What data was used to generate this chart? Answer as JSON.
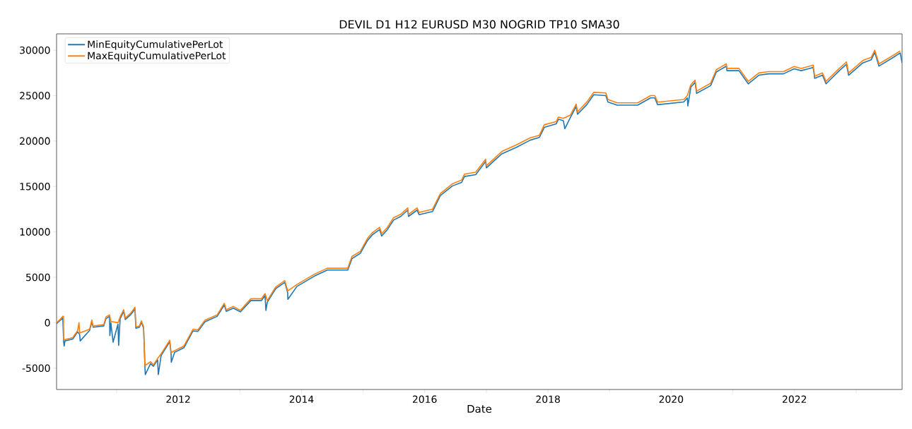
{
  "chart_data": {
    "type": "line",
    "title": "DEVIL D1 H12 EURUSD M30 NOGRID TP10 SMA30",
    "xlabel": "Date",
    "xlim": [
      "2010-01-10",
      "2023-10-01"
    ],
    "xticks": [
      {
        "value": "2011-01-01",
        "label": null
      },
      {
        "value": "2012-01-01",
        "label": "2012"
      },
      {
        "value": "2013-01-01",
        "label": null
      },
      {
        "value": "2014-01-01",
        "label": "2014"
      },
      {
        "value": "2015-01-01",
        "label": null
      },
      {
        "value": "2016-01-01",
        "label": "2016"
      },
      {
        "value": "2017-01-01",
        "label": null
      },
      {
        "value": "2018-01-01",
        "label": "2018"
      },
      {
        "value": "2019-01-01",
        "label": null
      },
      {
        "value": "2020-01-01",
        "label": "2020"
      },
      {
        "value": "2021-01-01",
        "label": null
      },
      {
        "value": "2022-01-01",
        "label": "2022"
      },
      {
        "value": "2023-01-01",
        "label": null
      }
    ],
    "ylim": [
      -7350,
      31800
    ],
    "yticks": [
      -5000,
      0,
      5000,
      10000,
      15000,
      20000,
      25000,
      30000
    ],
    "legend": "top left",
    "grid": false,
    "marker": "none",
    "line_style": "solid",
    "series": [
      {
        "name": "MinEquityCumulativePerLot",
        "color": "#1f77b4",
        "x": [
          "2010-01-10",
          "2010-01-31",
          "2010-02-16",
          "2010-02-21",
          "2010-02-24",
          "2010-03-01",
          "2010-04-16",
          "2010-05-15",
          "2010-05-23",
          "2010-05-27",
          "2010-05-30",
          "2010-07-25",
          "2010-08-07",
          "2010-08-15",
          "2010-10-17",
          "2010-10-30",
          "2010-11-20",
          "2010-11-22",
          "2010-11-28",
          "2010-12-11",
          "2011-01-09",
          "2011-01-13",
          "2011-01-22",
          "2011-02-12",
          "2011-02-21",
          "2011-03-26",
          "2011-04-20",
          "2011-04-25",
          "2011-05-16",
          "2011-05-28",
          "2011-06-10",
          "2011-06-18",
          "2011-06-20",
          "2011-07-21",
          "2011-08-07",
          "2011-09-01",
          "2011-09-05",
          "2011-09-22",
          "2011-11-12",
          "2011-11-20",
          "2011-11-21",
          "2011-12-11",
          "2012-02-04",
          "2012-03-29",
          "2012-04-27",
          "2012-06-08",
          "2012-08-19",
          "2012-09-30",
          "2012-10-12",
          "2012-11-23",
          "2013-01-04",
          "2013-03-07",
          "2013-05-09",
          "2013-05-30",
          "2013-06-04",
          "2013-06-12",
          "2013-08-01",
          "2013-09-24",
          "2013-10-11",
          "2013-10-12",
          "2013-12-05",
          "2014-03-20",
          "2014-06-03",
          "2014-10-02",
          "2014-10-27",
          "2014-12-16",
          "2015-01-27",
          "2015-02-26",
          "2015-04-09",
          "2015-04-21",
          "2015-05-25",
          "2015-07-01",
          "2015-08-12",
          "2015-09-23",
          "2015-09-27",
          "2015-11-17",
          "2015-11-29",
          "2016-02-17",
          "2016-04-03",
          "2016-06-13",
          "2016-08-07",
          "2016-08-24",
          "2016-10-30",
          "2016-12-27",
          "2017-01-01",
          "2017-02-20",
          "2017-04-03",
          "2017-06-26",
          "2017-09-18",
          "2017-11-11",
          "2017-12-10",
          "2018-02-19",
          "2018-03-04",
          "2018-04-02",
          "2018-04-11",
          "2018-05-14",
          "2018-06-17",
          "2018-06-25",
          "2018-08-19",
          "2018-09-29",
          "2018-12-10",
          "2018-12-22",
          "2019-02-15",
          "2019-06-17",
          "2019-09-01",
          "2019-09-26",
          "2019-10-13",
          "2020-03-16",
          "2020-04-06",
          "2020-04-09",
          "2020-04-27",
          "2020-05-22",
          "2020-05-31",
          "2020-08-22",
          "2020-09-25",
          "2020-11-23",
          "2020-11-27",
          "2021-02-06",
          "2021-04-02",
          "2021-06-04",
          "2021-08-01",
          "2021-10-28",
          "2021-12-30",
          "2022-02-10",
          "2022-03-24",
          "2022-04-22",
          "2022-05-01",
          "2022-06-16",
          "2022-07-07",
          "2022-09-24",
          "2022-11-05",
          "2022-11-18",
          "2023-02-10",
          "2023-04-01",
          "2023-04-22",
          "2023-05-17",
          "2023-08-09",
          "2023-09-20",
          "2023-10-01"
        ],
        "values": [
          -100,
          250,
          500,
          -2100,
          -2570,
          -2000,
          -1800,
          -1000,
          null,
          -1300,
          -2000,
          -850,
          100,
          -500,
          -350,
          450,
          700,
          -1430,
          0,
          -2140,
          -150,
          -2500,
          450,
          1250,
          350,
          900,
          1500,
          -600,
          -500,
          50,
          -600,
          -4900,
          -5710,
          -4500,
          -4800,
          -4100,
          -5710,
          -3600,
          -2100,
          -3450,
          -4360,
          -3250,
          -2750,
          -900,
          -950,
          100,
          700,
          1950,
          1250,
          1600,
          1200,
          2450,
          2450,
          3000,
          1360,
          2250,
          3750,
          4450,
          3300,
          2570,
          4000,
          5150,
          5800,
          5800,
          7050,
          7650,
          9050,
          9700,
          10250,
          9550,
          10250,
          11300,
          11700,
          12400,
          11700,
          12400,
          11900,
          12250,
          14000,
          15050,
          15450,
          16100,
          16300,
          17750,
          17050,
          17900,
          18600,
          19300,
          20100,
          20400,
          21500,
          21900,
          22400,
          22250,
          21360,
          22600,
          23800,
          22950,
          24000,
          25100,
          25000,
          24300,
          23950,
          23950,
          24750,
          24750,
          24000,
          24300,
          24750,
          23860,
          25950,
          26450,
          25250,
          26100,
          27600,
          28250,
          27750,
          27750,
          26300,
          27250,
          27400,
          27400,
          27950,
          27750,
          27950,
          28100,
          26900,
          27250,
          26300,
          27750,
          28450,
          27250,
          28600,
          28950,
          29750,
          28250,
          29200,
          29700,
          28600
        ]
      },
      {
        "name": "MaxEquityCumulativePerLot",
        "color": "#ff7f0e",
        "x": [
          "2010-01-10",
          "2010-01-31",
          "2010-02-16",
          "2010-02-20",
          "2010-02-21",
          "2010-03-01",
          "2010-04-16",
          "2010-05-15",
          "2010-05-23",
          "2010-05-27",
          "2010-07-25",
          "2010-08-07",
          "2010-08-15",
          "2010-10-17",
          "2010-10-30",
          "2010-11-20",
          "2010-11-28",
          "2011-01-09",
          "2011-01-22",
          "2011-02-12",
          "2011-02-21",
          "2011-03-26",
          "2011-04-20",
          "2011-04-25",
          "2011-05-16",
          "2011-05-28",
          "2011-06-10",
          "2011-06-18",
          "2011-07-21",
          "2011-08-07",
          "2011-09-01",
          "2011-09-22",
          "2011-11-12",
          "2011-11-20",
          "2011-12-11",
          "2012-02-04",
          "2012-03-29",
          "2012-04-27",
          "2012-06-08",
          "2012-08-19",
          "2012-09-30",
          "2012-10-12",
          "2012-11-23",
          "2013-01-04",
          "2013-03-07",
          "2013-05-09",
          "2013-05-30",
          "2013-06-12",
          "2013-08-01",
          "2013-09-24",
          "2013-10-11",
          "2013-12-05",
          "2014-03-20",
          "2014-06-03",
          "2014-10-02",
          "2014-10-27",
          "2014-12-16",
          "2015-01-27",
          "2015-02-26",
          "2015-04-09",
          "2015-04-21",
          "2015-05-25",
          "2015-07-01",
          "2015-08-12",
          "2015-09-23",
          "2015-09-27",
          "2015-11-17",
          "2015-11-29",
          "2016-02-17",
          "2016-04-03",
          "2016-06-13",
          "2016-08-07",
          "2016-08-24",
          "2016-10-30",
          "2016-12-27",
          "2017-01-01",
          "2017-02-20",
          "2017-04-03",
          "2017-06-26",
          "2017-09-18",
          "2017-11-11",
          "2017-12-10",
          "2018-02-19",
          "2018-03-04",
          "2018-04-02",
          "2018-05-14",
          "2018-06-17",
          "2018-06-25",
          "2018-08-19",
          "2018-09-29",
          "2018-12-10",
          "2018-12-22",
          "2019-02-15",
          "2019-06-17",
          "2019-09-01",
          "2019-09-26",
          "2019-10-13",
          "2020-03-16",
          "2020-04-06",
          "2020-04-27",
          "2020-05-22",
          "2020-05-31",
          "2020-08-22",
          "2020-09-25",
          "2020-11-23",
          "2020-11-27",
          "2021-02-06",
          "2021-04-02",
          "2021-06-04",
          "2021-08-01",
          "2021-10-28",
          "2021-12-30",
          "2022-02-10",
          "2022-03-24",
          "2022-04-22",
          "2022-05-01",
          "2022-06-16",
          "2022-07-07",
          "2022-09-24",
          "2022-11-05",
          "2022-11-18",
          "2023-02-10",
          "2023-04-01",
          "2023-04-22",
          "2023-05-17",
          "2023-08-09",
          "2023-09-20"
        ],
        "values": [
          0,
          350,
          700,
          700,
          -1900,
          -1860,
          -1640,
          -860,
          0,
          -1140,
          -710,
          290,
          -360,
          -210,
          640,
          860,
          140,
          0,
          640,
          1430,
          500,
          1070,
          1710,
          -430,
          -360,
          210,
          -430,
          -4710,
          -4290,
          -4640,
          -3930,
          -3430,
          -1930,
          -3290,
          -3070,
          -2570,
          -710,
          -790,
          290,
          860,
          2140,
          1430,
          1790,
          1360,
          2640,
          2640,
          3210,
          2430,
          3930,
          4640,
          3500,
          4210,
          5360,
          6000,
          6000,
          7290,
          7860,
          9290,
          9930,
          10500,
          9790,
          10500,
          11570,
          11930,
          12640,
          11930,
          12640,
          12140,
          12500,
          14210,
          15290,
          15710,
          16360,
          16570,
          18000,
          17290,
          18140,
          18860,
          19570,
          20360,
          20640,
          21790,
          22140,
          22640,
          22500,
          22860,
          24070,
          23210,
          24290,
          25360,
          25290,
          24570,
          24210,
          24210,
          25000,
          25000,
          24290,
          24570,
          25000,
          26210,
          26710,
          25500,
          26360,
          27860,
          28500,
          28000,
          28000,
          26570,
          27500,
          27640,
          27640,
          28210,
          28000,
          28210,
          28360,
          27140,
          27500,
          26570,
          28000,
          28710,
          27500,
          28860,
          29210,
          30000,
          28500,
          29430,
          29930
        ]
      }
    ]
  }
}
